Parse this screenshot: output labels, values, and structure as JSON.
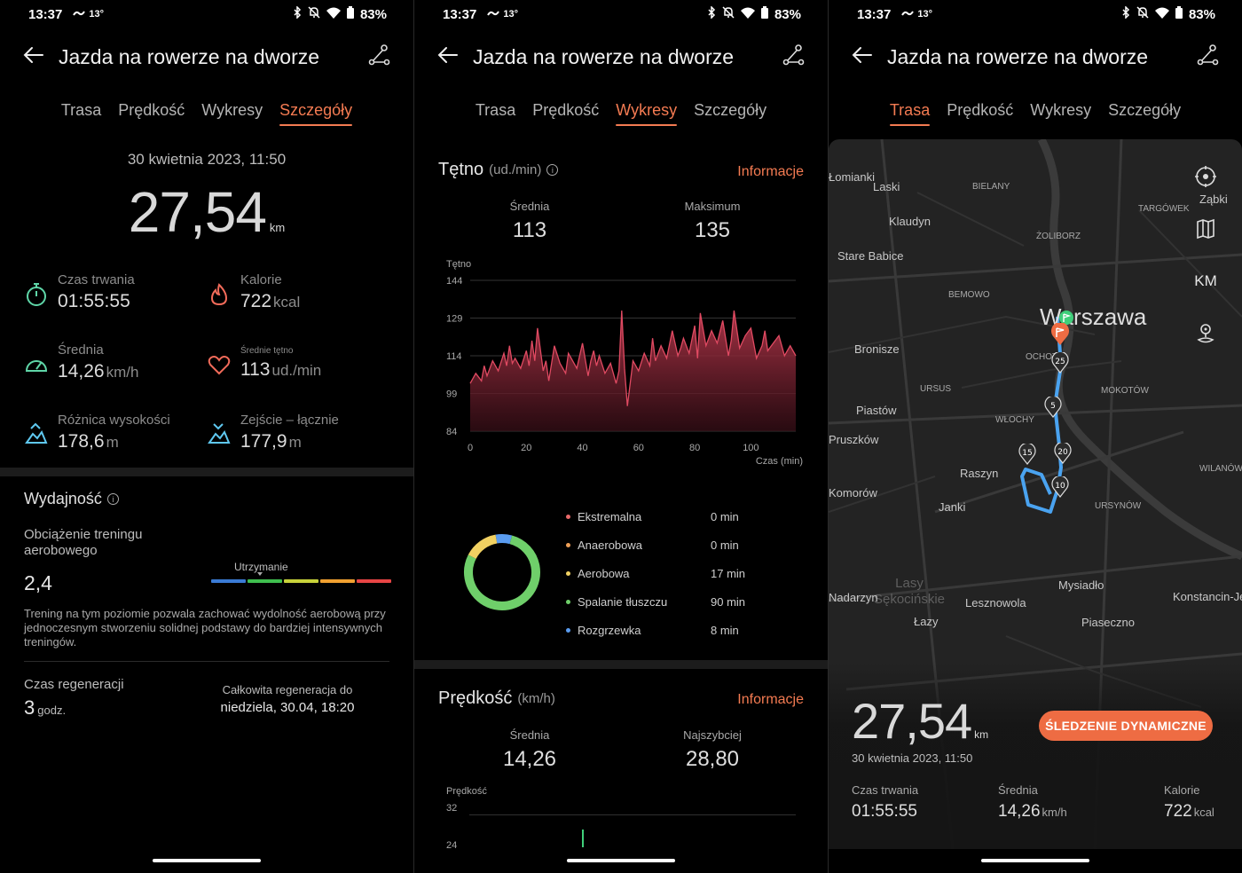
{
  "status": {
    "time": "13:37",
    "temp": "13°",
    "battery": "83%"
  },
  "title": "Jazda na rowerze na dworze",
  "tabs": [
    "Trasa",
    "Prędkość",
    "Wykresy",
    "Szczegóły"
  ],
  "p1": {
    "active_tab": "Szczegóły",
    "date": "30 kwietnia 2023, 11:50",
    "distance": "27,54",
    "distance_unit": "km",
    "metrics": [
      {
        "label": "Czas trwania",
        "value": "01:55:55",
        "unit": "",
        "icon": "stopwatch-icon"
      },
      {
        "label": "Kalorie",
        "value": "722",
        "unit": "kcal",
        "icon": "flame-icon"
      },
      {
        "label": "Średnia",
        "value": "14,26",
        "unit": "km/h",
        "icon": "speedometer-icon"
      },
      {
        "label": "Średnie tętno",
        "value": "113",
        "unit": "ud./min",
        "icon": "heart-icon"
      },
      {
        "label": "Różnica wysokości",
        "value": "178,6",
        "unit": "m",
        "icon": "elevation-gain-icon"
      },
      {
        "label": "Zejście – łącznie",
        "value": "177,9",
        "unit": "m",
        "icon": "elevation-loss-icon"
      }
    ],
    "performance": {
      "title": "Wydajność",
      "load_title": "Obciążenie treningu aerobowego",
      "load_value": "2,4",
      "gauge_label": "Utrzymanie",
      "gauge_colors": [
        "#3a7bd5",
        "#3fbf4f",
        "#c8d23a",
        "#f0a030",
        "#e84545"
      ],
      "description": "Trening na tym poziomie pozwala zachować wydolność aerobową przy jednoczesnym stworzeniu solidnej podstawy do bardziej intensywnych treningów."
    },
    "regen": {
      "title": "Czas regeneracji",
      "value": "3",
      "unit": "godz.",
      "right_label": "Całkowita regeneracja do",
      "right_value": "niedziela, 30.04, 18:20"
    }
  },
  "p2": {
    "active_tab": "Wykresy",
    "hr": {
      "title": "Tętno",
      "unit": "(ud./min)",
      "info": "Informacje",
      "avg_label": "Średnia",
      "avg_value": "113",
      "max_label": "Maksimum",
      "max_value": "135",
      "chart_label": "Tętno",
      "x_label": "Czas (min)"
    },
    "zones": [
      {
        "name": "Ekstremalna",
        "minutes": "0 min",
        "color": "#e96a6a"
      },
      {
        "name": "Anaerobowa",
        "minutes": "0 min",
        "color": "#f0a057"
      },
      {
        "name": "Aerobowa",
        "minutes": "17 min",
        "color": "#f1d162"
      },
      {
        "name": "Spalanie tłuszczu",
        "minutes": "90 min",
        "color": "#6fcf6a"
      },
      {
        "name": "Rozgrzewka",
        "minutes": "8 min",
        "color": "#5a9cf0"
      }
    ],
    "speed": {
      "title": "Prędkość",
      "unit": "(km/h)",
      "info": "Informacje",
      "avg_label": "Średnia",
      "avg_value": "14,26",
      "max_label": "Najszybciej",
      "max_value": "28,80",
      "chart_label": "Prędkość",
      "y_ticks": [
        "32",
        "24"
      ]
    }
  },
  "chart_data": {
    "type": "area",
    "title": "Tętno",
    "xlabel": "Czas (min)",
    "ylabel": "Tętno",
    "x_ticks": [
      0,
      20,
      40,
      60,
      80,
      100
    ],
    "y_ticks": [
      144,
      129,
      114,
      99,
      84
    ],
    "xlim": [
      0,
      116
    ],
    "ylim": [
      84,
      144
    ],
    "grid": true,
    "x": [
      0,
      2,
      4,
      5,
      6,
      8,
      10,
      12,
      13,
      14,
      15,
      16,
      18,
      20,
      21,
      22,
      23,
      24,
      26,
      27,
      28,
      30,
      32,
      34,
      35,
      36,
      38,
      40,
      42,
      43,
      44,
      45,
      46,
      48,
      50,
      52,
      53,
      54,
      55,
      56,
      58,
      60,
      62,
      64,
      65,
      66,
      68,
      70,
      72,
      74,
      75,
      76,
      78,
      80,
      81,
      82,
      84,
      86,
      88,
      90,
      92,
      93,
      94,
      96,
      98,
      100,
      102,
      104,
      105,
      106,
      108,
      110,
      112,
      114,
      116
    ],
    "y": [
      103,
      107,
      104,
      110,
      106,
      112,
      108,
      115,
      110,
      118,
      111,
      113,
      109,
      116,
      110,
      120,
      112,
      125,
      108,
      112,
      104,
      118,
      111,
      107,
      115,
      113,
      109,
      119,
      106,
      112,
      116,
      110,
      114,
      107,
      111,
      103,
      108,
      132,
      109,
      94,
      112,
      108,
      115,
      110,
      121,
      112,
      118,
      113,
      124,
      114,
      117,
      121,
      115,
      126,
      113,
      131,
      118,
      124,
      119,
      128,
      114,
      120,
      132,
      117,
      122,
      125,
      113,
      118,
      124,
      116,
      119,
      122,
      114,
      118,
      114
    ]
  },
  "p3": {
    "active_tab": "Trasa",
    "map_labels": [
      "Łomianki",
      "Laski",
      "BIELANY",
      "TARGÓWEK",
      "Ząbki",
      "Klaudyn",
      "ŻOLIBORZ",
      "Stare Babice",
      "BEMOWO",
      "Warszawa",
      "Bronisze",
      "OCHOTA",
      "URSUS",
      "MOKOTÓW",
      "Piastów",
      "WŁOCHY",
      "Pruszków",
      "WILANÓW",
      "Raszyn",
      "Komorów",
      "URSYNÓW",
      "Janki",
      "Lasy Sękocińskie",
      "Mysiadło",
      "Konstancin-Jeziorna",
      "Nadarzyn",
      "Lesznowola",
      "Piaseczno",
      "Łazy"
    ],
    "markers": [
      "5",
      "10",
      "15",
      "20",
      "25"
    ],
    "buttons": [
      "KM"
    ],
    "distance": "27,54",
    "distance_unit": "km",
    "live_button": "ŚLEDZENIE DYNAMICZNE",
    "date": "30 kwietnia 2023, 11:50",
    "stats": [
      {
        "label": "Czas trwania",
        "value": "01:55:55",
        "unit": ""
      },
      {
        "label": "Średnia",
        "value": "14,26",
        "unit": "km/h"
      },
      {
        "label": "Kalorie",
        "value": "722",
        "unit": "kcal"
      }
    ]
  }
}
